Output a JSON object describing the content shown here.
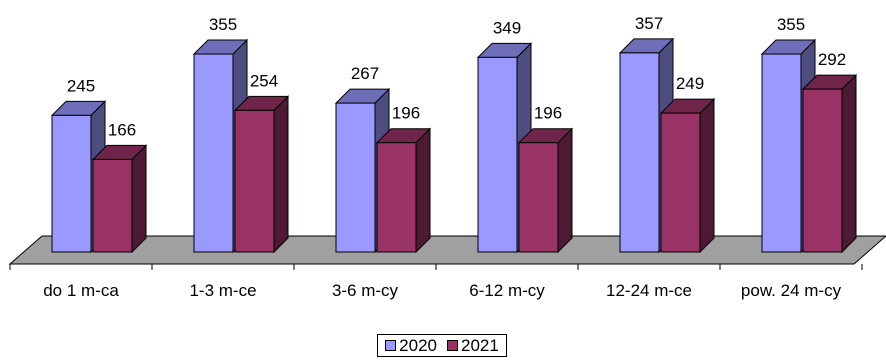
{
  "chart_data": {
    "type": "bar",
    "categories": [
      "do 1 m-ca",
      "1-3 m-ce",
      "3-6 m-cy",
      "6-12 m-cy",
      "12-24 m-ce",
      "pow. 24 m-cy"
    ],
    "series": [
      {
        "name": "2020",
        "values": [
          245,
          355,
          267,
          349,
          357,
          355
        ],
        "color": "#9999ff"
      },
      {
        "name": "2021",
        "values": [
          166,
          254,
          196,
          196,
          249,
          292
        ],
        "color": "#993366"
      }
    ],
    "value_labels": [
      [
        "245",
        "355",
        "267",
        "349",
        "357",
        "355"
      ],
      [
        "166",
        "254",
        "196",
        "196",
        "249",
        "292"
      ]
    ],
    "grid": false,
    "legend_position": "bottom-center",
    "floor_color": "#a0a0a0",
    "style": "3d-column"
  }
}
